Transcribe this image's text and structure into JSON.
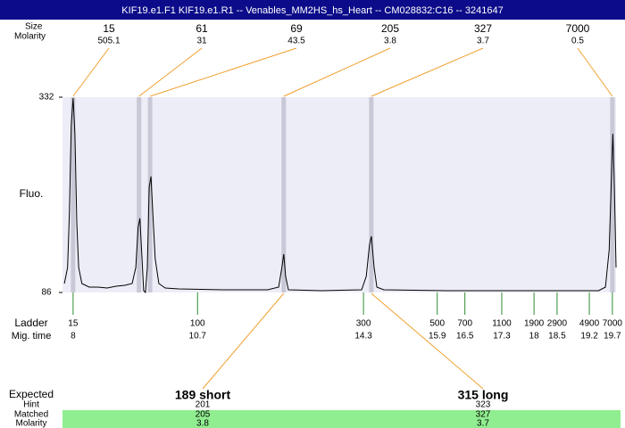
{
  "window_title": "KIF19.e1.F1  KIF19.e1.R1 -- Venables_MM2HS_hs_Heart -- CM028832:C16 -- 3241647",
  "chart_data": {
    "type": "line",
    "y_label": "Fluo.",
    "color": "#000000",
    "xlim": [
      7.77,
      19.78
    ],
    "ylim": [
      86,
      332
    ],
    "yticks": [
      86,
      332
    ],
    "x": [
      7.81,
      7.88,
      7.92,
      7.96,
      8.0,
      8.04,
      8.08,
      8.12,
      8.19,
      8.35,
      8.54,
      8.74,
      8.93,
      9.12,
      9.28,
      9.36,
      9.41,
      9.45,
      9.49,
      9.53,
      9.57,
      9.61,
      9.65,
      9.69,
      9.72,
      9.78,
      9.86,
      10.0,
      10.29,
      11.26,
      12.22,
      12.46,
      12.53,
      12.57,
      12.61,
      12.67,
      13.39,
      14.26,
      14.36,
      14.43,
      14.47,
      14.53,
      14.59,
      14.74,
      16.1,
      18.04,
      19.4,
      19.55,
      19.63,
      19.69,
      19.71,
      19.74,
      19.78
    ],
    "values": [
      97.2,
      117.5,
      184.9,
      297.2,
      330.9,
      286,
      173.6,
      117.5,
      97.2,
      92.7,
      92.7,
      91.6,
      93.9,
      95,
      97.2,
      117.5,
      168,
      179.3,
      134.3,
      88.2,
      86,
      117.5,
      218.6,
      232.1,
      196.1,
      128.7,
      97.2,
      91.6,
      90.5,
      89.4,
      89.4,
      92.7,
      117.5,
      134.3,
      106.2,
      89.4,
      88.2,
      89.4,
      106.2,
      145.6,
      156.8,
      117.5,
      92.7,
      89.4,
      88.2,
      88.2,
      88.2,
      92.7,
      139.9,
      252.3,
      286,
      229.8,
      117.5
    ]
  },
  "peaks": {
    "row_labels": [
      "Size",
      "Molarity"
    ],
    "sizes": [
      15,
      61,
      69,
      205,
      327,
      7000
    ],
    "molarity": [
      505.1,
      31,
      43.5,
      3.8,
      3.7,
      0.5
    ],
    "mig_times": [
      8.0,
      9.43,
      9.67,
      12.57,
      14.47,
      19.7
    ]
  },
  "ladder": {
    "row_labels": [
      "Ladder",
      "Mig. time"
    ],
    "sizes": [
      15,
      100,
      300,
      500,
      700,
      1100,
      1900,
      2900,
      4900,
      7000
    ],
    "mig_times": [
      8,
      10.7,
      14.3,
      15.9,
      16.5,
      17.3,
      18,
      18.5,
      19.2,
      19.7
    ]
  },
  "fragments": {
    "row_labels": [
      "Expected",
      "Hint",
      "Matched",
      "Molarity"
    ],
    "expected": [
      "189 short",
      "315 long"
    ],
    "hint": [
      201,
      323
    ],
    "matched": [
      205,
      327
    ],
    "molarity": [
      3.8,
      3.7
    ]
  }
}
